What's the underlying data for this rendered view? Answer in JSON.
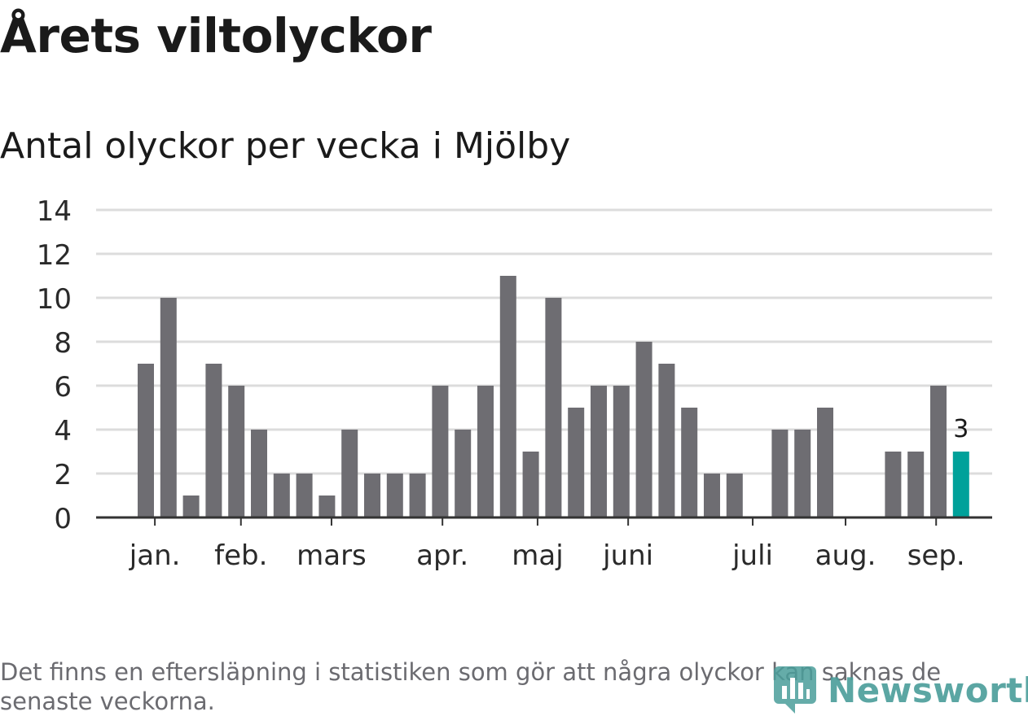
{
  "title": "Årets viltolyckor",
  "subtitle": "Antal olyckor per vecka i Mjölby",
  "note": "Det finns en eftersläpning i statistiken som gör att några olyckor kan saknas de senaste veckorna.",
  "brand": {
    "name": "Newsworthy",
    "color": "#4a9d9a",
    "icon": "newsworthy-logo-icon"
  },
  "chart_data": {
    "type": "bar",
    "ylim": [
      0,
      14
    ],
    "yticks": [
      0,
      2,
      4,
      6,
      8,
      10,
      12,
      14
    ],
    "grid": true,
    "bar_color": "#6e6d72",
    "highlight_color": "#00a19a",
    "highlight_index": 36,
    "highlight_label": "3",
    "values": [
      7,
      10,
      1,
      7,
      6,
      4,
      2,
      2,
      1,
      4,
      2,
      2,
      2,
      6,
      4,
      6,
      11,
      3,
      10,
      5,
      6,
      6,
      8,
      7,
      5,
      2,
      2,
      0,
      4,
      4,
      5,
      0,
      0,
      3,
      3,
      6,
      3
    ],
    "month_labels": [
      {
        "label": "jan.",
        "at": 0.4
      },
      {
        "label": "feb.",
        "at": 4.2
      },
      {
        "label": "mars",
        "at": 8.2
      },
      {
        "label": "apr.",
        "at": 13.1
      },
      {
        "label": "maj",
        "at": 17.3
      },
      {
        "label": "juni",
        "at": 21.3
      },
      {
        "label": "juli",
        "at": 26.8
      },
      {
        "label": "aug.",
        "at": 30.9
      },
      {
        "label": "sep.",
        "at": 34.9
      }
    ]
  }
}
